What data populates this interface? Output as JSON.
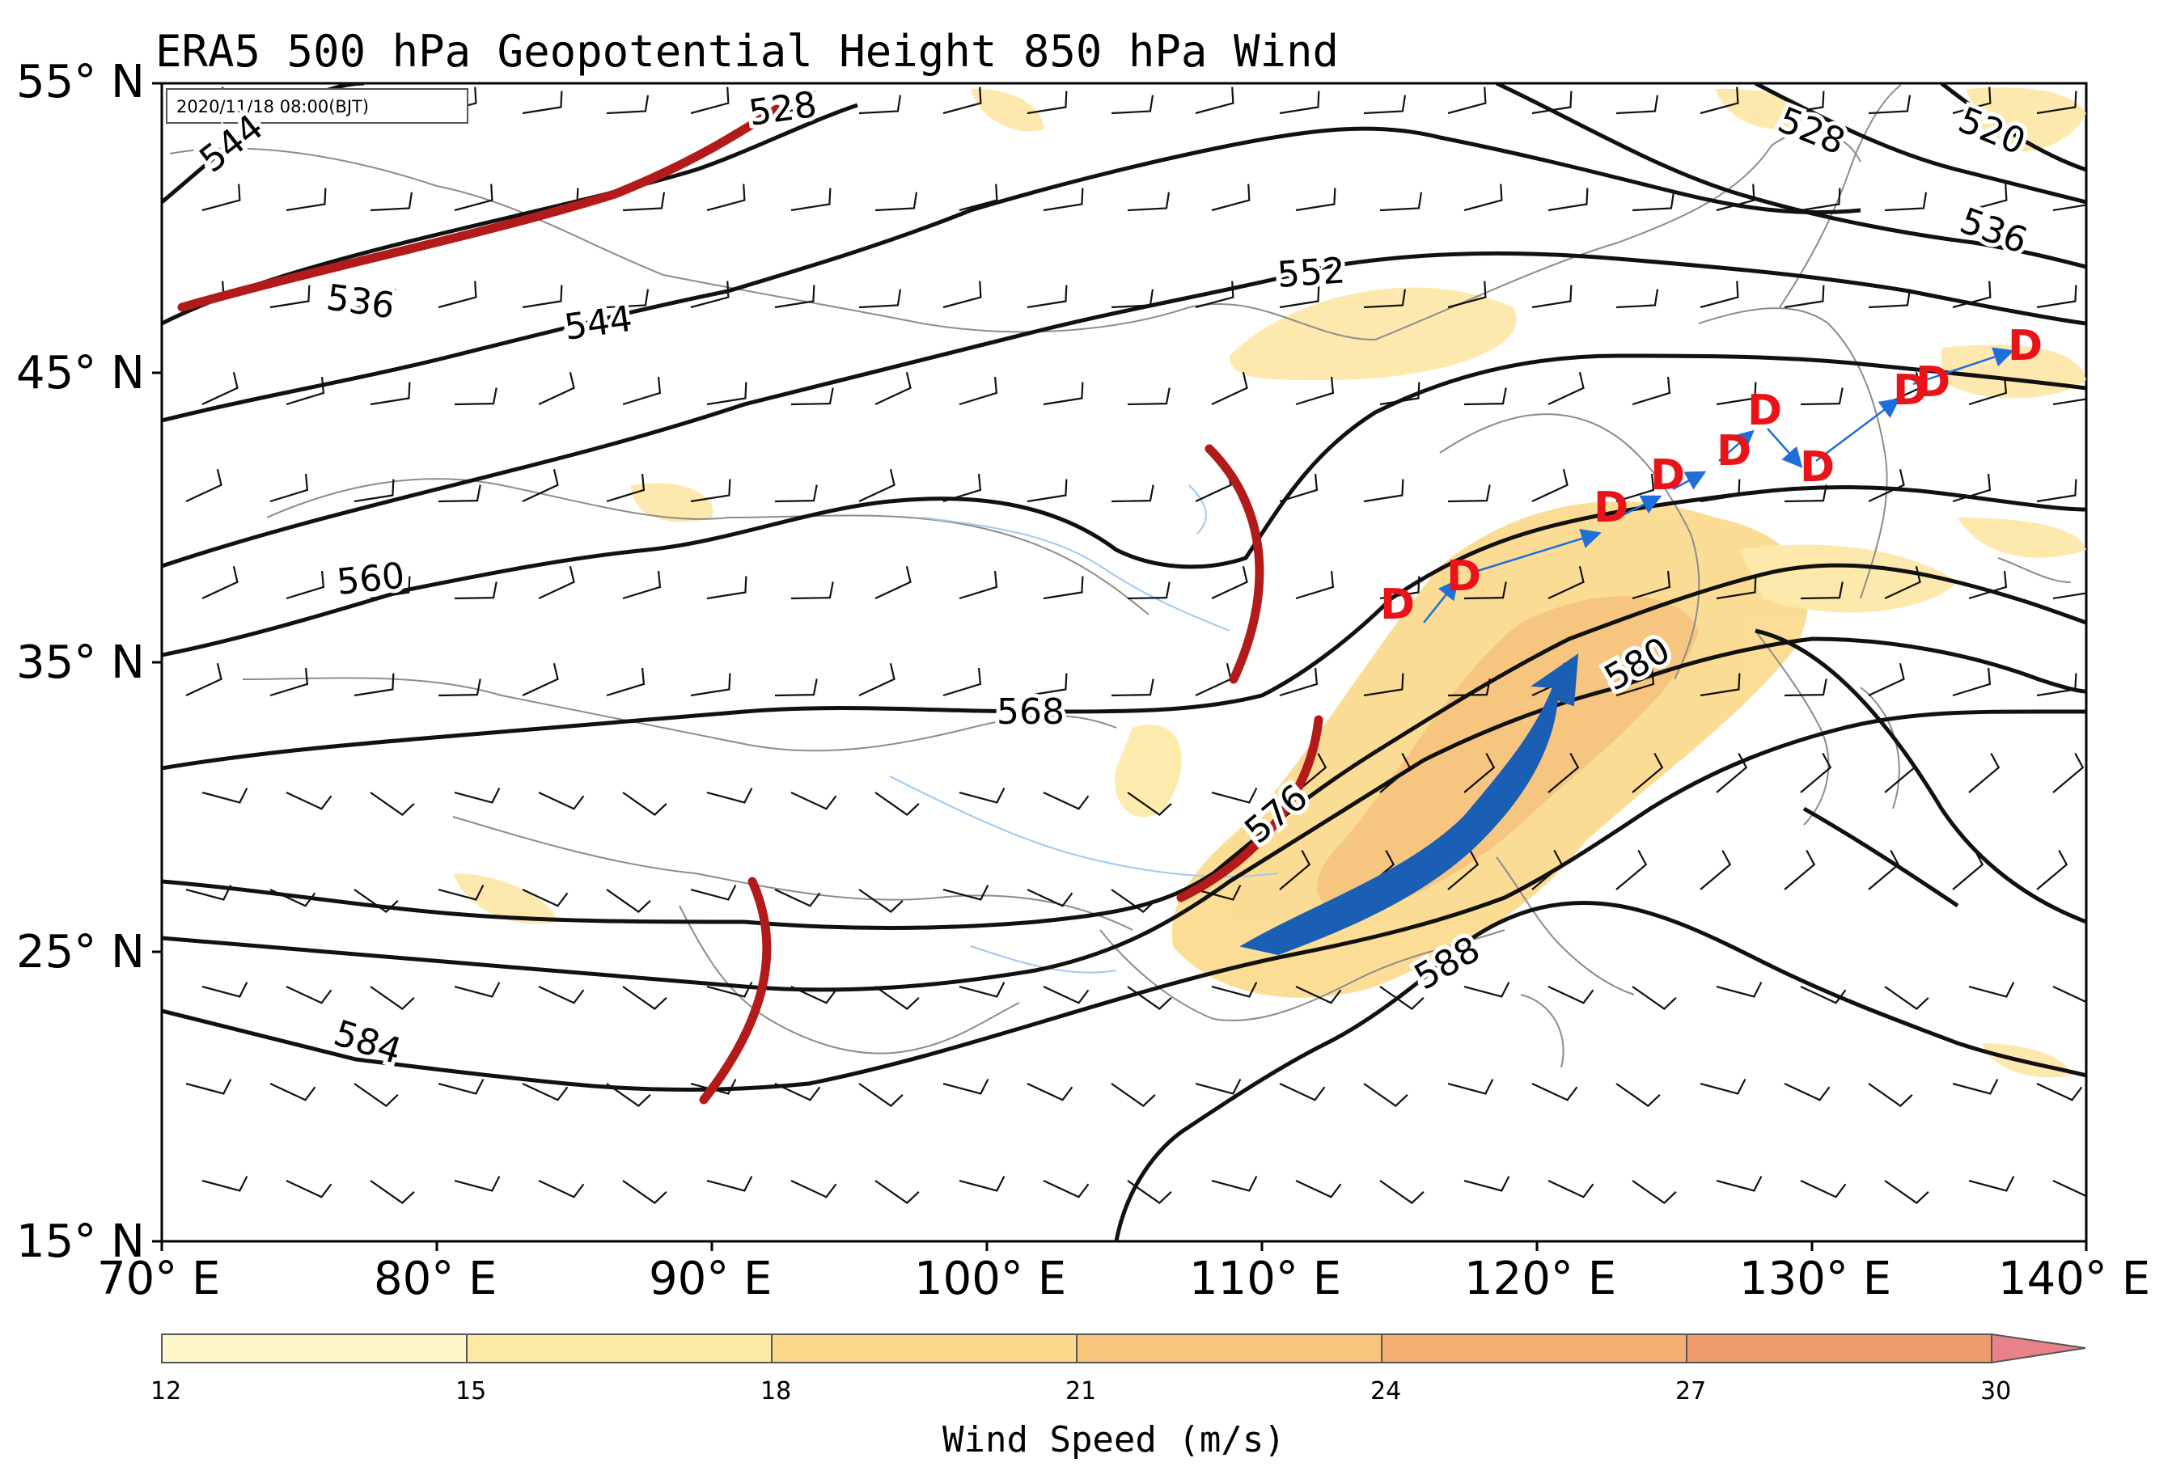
{
  "title": "ERA5 500 hPa Geopotential Height 850 hPa Wind",
  "timestamp": "2020/11/18 08:00(BJT)",
  "axes": {
    "lat_labels": [
      "55° N",
      "45° N",
      "35° N",
      "25° N",
      "15° N"
    ],
    "lon_labels": [
      "70° E",
      "80° E",
      "90° E",
      "100° E",
      "110° E",
      "120° E",
      "130° E",
      "140° E"
    ]
  },
  "contour_labels": [
    "544",
    "528",
    "536",
    "544",
    "552",
    "528",
    "520",
    "536",
    "560",
    "568",
    "576",
    "580",
    "588",
    "584"
  ],
  "colorbar": {
    "title": "Wind Speed (m/s)",
    "ticks": [
      "12",
      "15",
      "18",
      "21",
      "24",
      "27",
      "30"
    ],
    "colors": [
      "#fef6c8",
      "#fde9a6",
      "#fbd98a",
      "#f8c57c",
      "#f4ae72",
      "#ef9b6e"
    ]
  },
  "markers": {
    "d_symbol": "D",
    "d_count": 10
  },
  "colors": {
    "trough_line": "#b31b1b",
    "jet_arrow": "#1b5fb5",
    "d_marker": "#e8141a",
    "d_track": "#1e6fd9"
  }
}
